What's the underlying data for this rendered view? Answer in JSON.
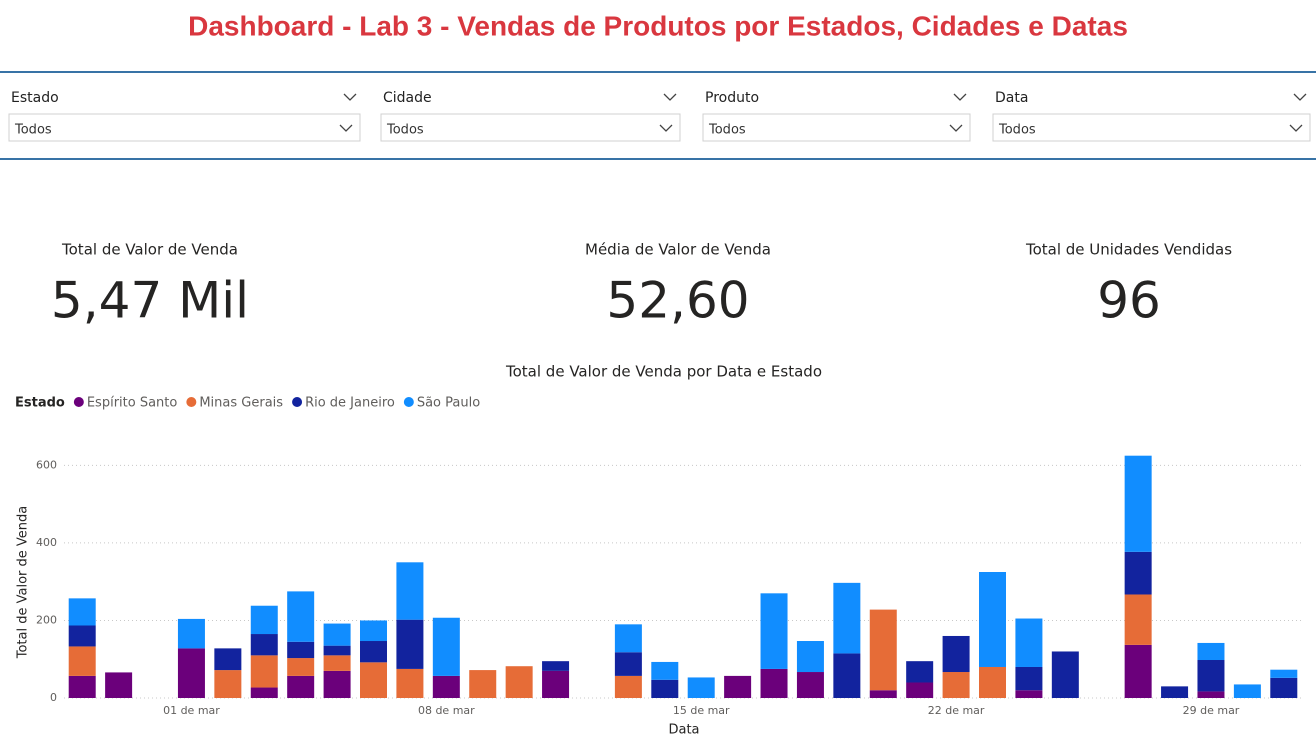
{
  "header": {
    "title": "Dashboard - Lab 3 - Vendas de Produtos por Estados, Cidades e Datas"
  },
  "filters": [
    {
      "label": "Estado",
      "value": "Todos"
    },
    {
      "label": "Cidade",
      "value": "Todos"
    },
    {
      "label": "Produto",
      "value": "Todos"
    },
    {
      "label": "Data",
      "value": "Todos"
    }
  ],
  "kpis": [
    {
      "label": "Total de Valor de Venda",
      "value": "5,47 Mil"
    },
    {
      "label": "Média de Valor de Venda",
      "value": "52,60"
    },
    {
      "label": "Total de Unidades Vendidas",
      "value": "96"
    }
  ],
  "chart_data": {
    "type": "bar",
    "stacked": true,
    "title": "Total de Valor de Venda por Data e Estado",
    "legend_title": "Estado",
    "x_label": "Data",
    "y_label": "Total de Valor de Venda",
    "categories": [
      null,
      null,
      null,
      "01 de mar",
      null,
      null,
      null,
      null,
      null,
      null,
      "08 de mar",
      null,
      null,
      null,
      null,
      null,
      null,
      "15 de mar",
      null,
      null,
      null,
      null,
      null,
      null,
      "22 de mar",
      null,
      null,
      null,
      null,
      null,
      null,
      "29 de mar",
      null,
      null
    ],
    "series": [
      {
        "name": "Espírito Santo",
        "color": "#6b007b",
        "values": [
          57,
          66,
          null,
          128,
          null,
          27,
          57,
          70,
          null,
          null,
          57,
          null,
          null,
          70,
          null,
          null,
          null,
          null,
          57,
          75,
          67,
          null,
          20,
          40,
          null,
          null,
          20,
          null,
          null,
          137,
          null,
          17,
          null,
          null
        ]
      },
      {
        "name": "Minas Gerais",
        "color": "#e66c37",
        "values": [
          76,
          null,
          null,
          null,
          72,
          83,
          46,
          40,
          92,
          75,
          null,
          72,
          82,
          null,
          null,
          57,
          null,
          null,
          null,
          null,
          null,
          null,
          208,
          null,
          67,
          80,
          null,
          null,
          null,
          130,
          null,
          null,
          null,
          null
        ]
      },
      {
        "name": "Rio de Janeiro",
        "color": "#12239e",
        "values": [
          54,
          null,
          null,
          null,
          56,
          55,
          42,
          25,
          55,
          127,
          null,
          null,
          null,
          25,
          null,
          61,
          47,
          null,
          null,
          null,
          null,
          115,
          null,
          55,
          93,
          null,
          60,
          120,
          null,
          110,
          30,
          81,
          null,
          52
        ]
      },
      {
        "name": "São Paulo",
        "color": "#118dff",
        "values": [
          70,
          null,
          null,
          76,
          null,
          73,
          130,
          57,
          53,
          148,
          150,
          null,
          null,
          null,
          null,
          72,
          46,
          53,
          null,
          195,
          80,
          182,
          null,
          null,
          null,
          245,
          125,
          null,
          null,
          248,
          null,
          44,
          35,
          21
        ]
      }
    ],
    "ylim": [
      0,
      650
    ],
    "yticks": [
      0,
      200,
      400,
      600
    ],
    "grid": true
  }
}
